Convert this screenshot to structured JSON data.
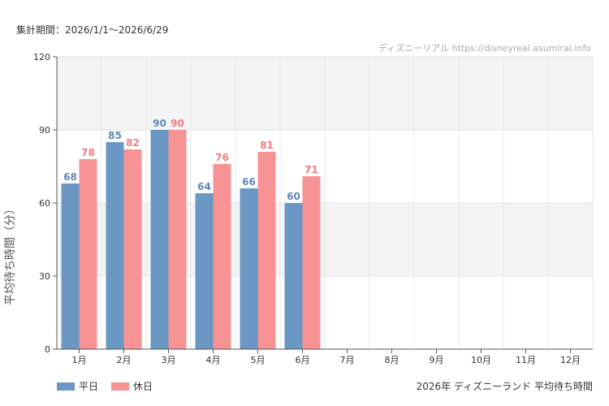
{
  "header": {
    "period": "集計期間：2026/1/1～2026/6/29",
    "source": "ディズニーリアル https://disneyreal.asumirai.info"
  },
  "footer": {
    "caption": "2026年 ディズニーランド 平均待ち時間"
  },
  "colors": {
    "weekday": "#6b97c4",
    "holiday": "#f79295",
    "weekday_label": "#5b87b8",
    "holiday_label": "#ef7b80",
    "band": "#f4f4f4"
  },
  "chart_data": {
    "type": "bar",
    "ylabel": "平均待ち時間（分）",
    "ylim": [
      0,
      120
    ],
    "yticks": [
      "0",
      "30",
      "60",
      "90",
      "120"
    ],
    "categories": [
      "1月",
      "2月",
      "3月",
      "4月",
      "5月",
      "6月",
      "7月",
      "8月",
      "9月",
      "10月",
      "11月",
      "12月"
    ],
    "series": [
      {
        "name": "平日",
        "values": [
          68,
          85,
          90,
          64,
          66,
          60,
          null,
          null,
          null,
          null,
          null,
          null
        ]
      },
      {
        "name": "休日",
        "values": [
          78,
          82,
          90,
          76,
          81,
          71,
          null,
          null,
          null,
          null,
          null,
          null
        ]
      }
    ],
    "grid": true,
    "legend": "bottom-left"
  }
}
